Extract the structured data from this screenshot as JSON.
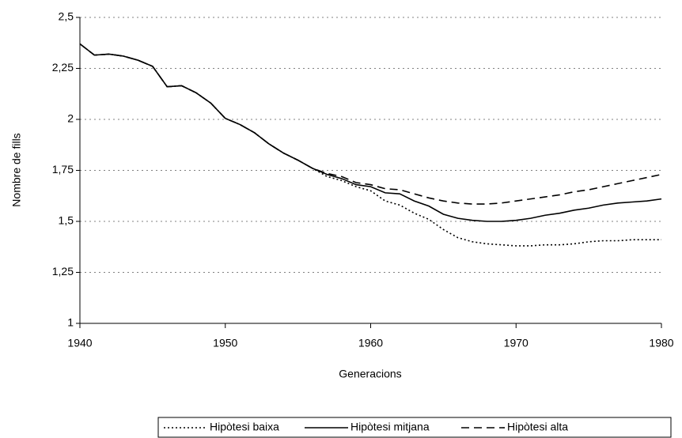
{
  "chart_data": {
    "type": "line",
    "y_label": "Nombre de fills",
    "x_label": "Generacions",
    "x": [
      1940,
      1941,
      1942,
      1943,
      1944,
      1945,
      1946,
      1947,
      1948,
      1949,
      1950,
      1951,
      1952,
      1953,
      1954,
      1955,
      1956,
      1957,
      1958,
      1959,
      1960,
      1961,
      1962,
      1963,
      1964,
      1965,
      1966,
      1967,
      1968,
      1969,
      1970,
      1971,
      1972,
      1973,
      1974,
      1975,
      1976,
      1977,
      1978,
      1979,
      1980
    ],
    "series": [
      {
        "name": "Hipòtesi baixa",
        "color": "#000000",
        "dash": "dotted",
        "values": [
          2.37,
          2.315,
          2.32,
          2.31,
          2.29,
          2.26,
          2.16,
          2.165,
          2.13,
          2.08,
          2.005,
          1.975,
          1.935,
          1.88,
          1.835,
          1.8,
          1.76,
          1.72,
          1.7,
          1.67,
          1.65,
          1.6,
          1.58,
          1.54,
          1.51,
          1.46,
          1.42,
          1.4,
          1.39,
          1.385,
          1.38,
          1.38,
          1.385,
          1.385,
          1.39,
          1.4,
          1.405,
          1.405,
          1.41,
          1.41,
          1.41
        ]
      },
      {
        "name": "Hipòtesi mitjana",
        "color": "#000000",
        "dash": "solid",
        "values": [
          2.37,
          2.315,
          2.32,
          2.31,
          2.29,
          2.26,
          2.16,
          2.165,
          2.13,
          2.08,
          2.005,
          1.975,
          1.935,
          1.88,
          1.835,
          1.8,
          1.76,
          1.73,
          1.71,
          1.68,
          1.67,
          1.64,
          1.635,
          1.6,
          1.575,
          1.535,
          1.515,
          1.505,
          1.5,
          1.5,
          1.505,
          1.515,
          1.53,
          1.54,
          1.555,
          1.565,
          1.58,
          1.59,
          1.595,
          1.6,
          1.61
        ]
      },
      {
        "name": "Hipòtesi alta",
        "color": "#000000",
        "dash": "dashed",
        "values": [
          2.37,
          2.315,
          2.32,
          2.31,
          2.29,
          2.26,
          2.16,
          2.165,
          2.13,
          2.08,
          2.005,
          1.975,
          1.935,
          1.88,
          1.835,
          1.8,
          1.76,
          1.735,
          1.72,
          1.69,
          1.68,
          1.66,
          1.655,
          1.635,
          1.615,
          1.6,
          1.59,
          1.585,
          1.585,
          1.59,
          1.6,
          1.61,
          1.62,
          1.63,
          1.645,
          1.655,
          1.67,
          1.685,
          1.7,
          1.715,
          1.73
        ]
      }
    ],
    "xlim": [
      1940,
      1980
    ],
    "xticks": [
      1940,
      1950,
      1960,
      1970,
      1980
    ],
    "ylim": [
      1,
      2.5
    ],
    "yticks": [
      1,
      {
        "value": 1.25,
        "label": "1,25"
      },
      {
        "value": 1.5,
        "label": "1,5"
      },
      {
        "value": 1.75,
        "label": "1,75"
      },
      2,
      {
        "value": 2.25,
        "label": "2,25"
      },
      {
        "value": 2.5,
        "label": "2,5"
      }
    ],
    "grid": true,
    "legend": "bottom"
  }
}
